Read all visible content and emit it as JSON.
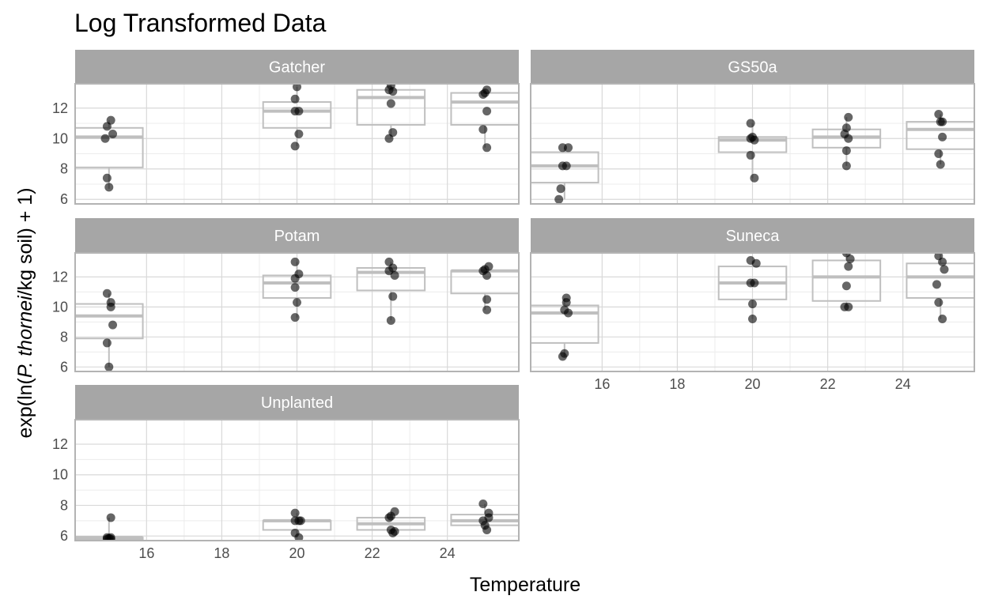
{
  "chart_data": {
    "type": "boxplot",
    "title": "Log Transformed Data",
    "xlabel": "Temperature",
    "ylabel": {
      "before": "exp(ln(",
      "italic": "P. thornei",
      "after": "/kg soil) + 1)"
    },
    "x_ticks": [
      16,
      18,
      20,
      22,
      24
    ],
    "y_ticks": [
      6,
      8,
      10,
      12
    ],
    "xlim": [
      14.1,
      25.9
    ],
    "ylim": [
      5.7,
      13.6
    ],
    "grid": true,
    "colors": {
      "strip": "#a6a6a6",
      "box": "#bfbfbf",
      "point": "#000000",
      "grid_major": "#d9d9d9",
      "grid_minor": "#ececec",
      "panel_border": "#b3b3b3"
    },
    "panels": [
      {
        "name": "Gatcher",
        "boxes": [
          {
            "x": 15,
            "lower": 6.7,
            "q1": 8.1,
            "median": 10.1,
            "q3": 10.7,
            "upper": 11.2
          },
          {
            "x": 20,
            "lower": 9.5,
            "q1": 10.7,
            "median": 11.8,
            "q3": 12.4,
            "upper": 13.4
          },
          {
            "x": 22.5,
            "lower": 10.0,
            "q1": 10.9,
            "median": 12.7,
            "q3": 13.2,
            "upper": 13.6
          },
          {
            "x": 25,
            "lower": 9.4,
            "q1": 10.9,
            "median": 12.4,
            "q3": 13.0,
            "upper": 13.2
          }
        ],
        "points": [
          [
            15,
            6.8
          ],
          [
            14.95,
            7.4
          ],
          [
            14.9,
            10.0
          ],
          [
            15.1,
            10.3
          ],
          [
            14.95,
            10.8
          ],
          [
            15.05,
            11.2
          ],
          [
            19.95,
            9.5
          ],
          [
            20.05,
            10.3
          ],
          [
            19.95,
            11.8
          ],
          [
            20.05,
            11.8
          ],
          [
            19.95,
            12.6
          ],
          [
            20,
            13.4
          ],
          [
            22.45,
            10.0
          ],
          [
            22.55,
            10.4
          ],
          [
            22.5,
            12.3
          ],
          [
            22.55,
            13.1
          ],
          [
            22.45,
            13.2
          ],
          [
            22.5,
            13.5
          ],
          [
            25.05,
            9.4
          ],
          [
            24.95,
            10.6
          ],
          [
            25.05,
            11.8
          ],
          [
            24.95,
            12.9
          ],
          [
            25,
            13.0
          ],
          [
            25.05,
            13.2
          ]
        ]
      },
      {
        "name": "GS50a",
        "boxes": [
          {
            "x": 15,
            "lower": 6.0,
            "q1": 7.1,
            "median": 8.2,
            "q3": 9.1,
            "upper": 9.4
          },
          {
            "x": 20,
            "lower": 7.4,
            "q1": 9.1,
            "median": 9.9,
            "q3": 10.1,
            "upper": 11.0
          },
          {
            "x": 22.5,
            "lower": 8.2,
            "q1": 9.4,
            "median": 10.1,
            "q3": 10.6,
            "upper": 11.4
          },
          {
            "x": 25,
            "lower": 8.3,
            "q1": 9.3,
            "median": 10.6,
            "q3": 11.1,
            "upper": 11.6
          }
        ],
        "points": [
          [
            14.85,
            6.0
          ],
          [
            14.9,
            6.7
          ],
          [
            15.05,
            8.2
          ],
          [
            14.95,
            8.2
          ],
          [
            15.1,
            9.4
          ],
          [
            14.95,
            9.4
          ],
          [
            20.05,
            7.4
          ],
          [
            19.95,
            8.9
          ],
          [
            20.05,
            9.9
          ],
          [
            19.95,
            10.0
          ],
          [
            20,
            10.1
          ],
          [
            19.95,
            11.0
          ],
          [
            22.5,
            8.2
          ],
          [
            22.5,
            9.2
          ],
          [
            22.55,
            10.0
          ],
          [
            22.45,
            10.3
          ],
          [
            22.5,
            10.7
          ],
          [
            22.55,
            11.4
          ],
          [
            25,
            8.3
          ],
          [
            24.95,
            9.0
          ],
          [
            25.05,
            10.1
          ],
          [
            25,
            11.1
          ],
          [
            25.05,
            11.1
          ],
          [
            24.95,
            11.6
          ]
        ]
      },
      {
        "name": "Potam",
        "boxes": [
          {
            "x": 15,
            "lower": 6.0,
            "q1": 7.9,
            "median": 9.4,
            "q3": 10.2,
            "upper": 10.9
          },
          {
            "x": 20,
            "lower": 9.3,
            "q1": 10.6,
            "median": 11.6,
            "q3": 12.1,
            "upper": 13.0
          },
          {
            "x": 22.5,
            "lower": 9.1,
            "q1": 11.1,
            "median": 12.3,
            "q3": 12.6,
            "upper": 13.0
          },
          {
            "x": 25,
            "lower": 9.8,
            "q1": 10.9,
            "median": 12.4,
            "q3": 12.4,
            "upper": 12.7
          }
        ],
        "points": [
          [
            15,
            6.0
          ],
          [
            14.95,
            7.6
          ],
          [
            15.1,
            8.8
          ],
          [
            15.05,
            10.0
          ],
          [
            15.05,
            10.3
          ],
          [
            14.95,
            10.9
          ],
          [
            19.95,
            9.3
          ],
          [
            20,
            10.3
          ],
          [
            19.95,
            11.3
          ],
          [
            19.95,
            11.9
          ],
          [
            20.05,
            12.2
          ],
          [
            19.95,
            13.0
          ],
          [
            22.5,
            9.1
          ],
          [
            22.55,
            10.7
          ],
          [
            22.6,
            12.1
          ],
          [
            22.45,
            12.4
          ],
          [
            22.55,
            12.6
          ],
          [
            22.45,
            13.0
          ],
          [
            25.05,
            9.8
          ],
          [
            25.05,
            10.5
          ],
          [
            25.05,
            12.1
          ],
          [
            24.95,
            12.4
          ],
          [
            25,
            12.5
          ],
          [
            25.1,
            12.7
          ]
        ]
      },
      {
        "name": "Suneca",
        "boxes": [
          {
            "x": 15,
            "lower": 6.7,
            "q1": 7.6,
            "median": 9.6,
            "q3": 10.1,
            "upper": 10.6
          },
          {
            "x": 20,
            "lower": 9.2,
            "q1": 10.5,
            "median": 11.6,
            "q3": 12.7,
            "upper": 13.1
          },
          {
            "x": 22.5,
            "lower": 10.0,
            "q1": 10.4,
            "median": 12.0,
            "q3": 13.1,
            "upper": 13.6
          },
          {
            "x": 25,
            "lower": 9.2,
            "q1": 10.6,
            "median": 12.0,
            "q3": 12.9,
            "upper": 13.5
          }
        ],
        "points": [
          [
            14.95,
            6.7
          ],
          [
            15,
            6.9
          ],
          [
            15.1,
            9.6
          ],
          [
            15,
            9.8
          ],
          [
            15.05,
            10.3
          ],
          [
            15.05,
            10.6
          ],
          [
            20,
            9.2
          ],
          [
            20,
            10.2
          ],
          [
            19.95,
            11.6
          ],
          [
            20.05,
            11.6
          ],
          [
            20.1,
            12.9
          ],
          [
            19.95,
            13.1
          ],
          [
            22.45,
            10.0
          ],
          [
            22.55,
            10.0
          ],
          [
            22.5,
            11.4
          ],
          [
            22.55,
            12.7
          ],
          [
            22.6,
            13.2
          ],
          [
            22.5,
            13.6
          ],
          [
            25.05,
            9.2
          ],
          [
            24.95,
            10.3
          ],
          [
            24.9,
            11.5
          ],
          [
            25.1,
            12.5
          ],
          [
            25.05,
            13.0
          ],
          [
            24.95,
            13.4
          ]
        ]
      },
      {
        "name": "Unplanted",
        "boxes": [
          {
            "x": 15,
            "lower": 5.8,
            "q1": 5.8,
            "median": 5.9,
            "q3": 5.9,
            "upper": 7.2
          },
          {
            "x": 20,
            "lower": 5.9,
            "q1": 6.4,
            "median": 7.0,
            "q3": 7.0,
            "upper": 7.5
          },
          {
            "x": 22.5,
            "lower": 6.2,
            "q1": 6.4,
            "median": 6.8,
            "q3": 7.2,
            "upper": 7.6
          },
          {
            "x": 25,
            "lower": 6.4,
            "q1": 6.7,
            "median": 7.0,
            "q3": 7.4,
            "upper": 8.1
          }
        ],
        "points": [
          [
            14.95,
            5.8
          ],
          [
            15.05,
            5.8
          ],
          [
            15.05,
            5.9
          ],
          [
            14.95,
            5.9
          ],
          [
            15,
            5.85
          ],
          [
            15.05,
            7.2
          ],
          [
            20.05,
            5.9
          ],
          [
            19.95,
            6.2
          ],
          [
            20.1,
            7.0
          ],
          [
            19.95,
            7.0
          ],
          [
            20.05,
            7.0
          ],
          [
            19.95,
            7.5
          ],
          [
            22.55,
            6.2
          ],
          [
            22.5,
            6.4
          ],
          [
            22.6,
            6.3
          ],
          [
            22.45,
            7.2
          ],
          [
            22.5,
            7.3
          ],
          [
            22.6,
            7.6
          ],
          [
            25.05,
            6.4
          ],
          [
            25,
            6.7
          ],
          [
            24.95,
            7.0
          ],
          [
            25.1,
            7.2
          ],
          [
            25.1,
            7.5
          ],
          [
            24.95,
            8.1
          ]
        ]
      }
    ]
  }
}
